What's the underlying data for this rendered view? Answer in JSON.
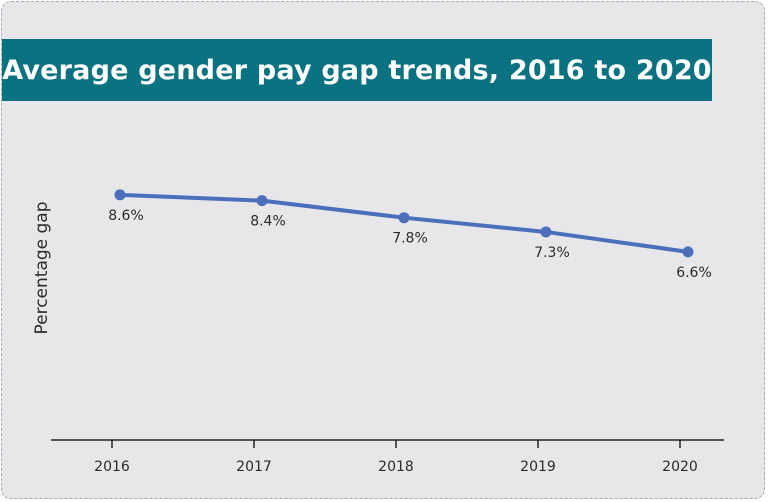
{
  "colors": {
    "background": "#e7e7ea",
    "banner": "#0b7282",
    "line": "#4c6fbb",
    "axis": "#222222"
  },
  "chart_data": {
    "type": "line",
    "title": "Average gender pay gap trends, 2016 to 2020",
    "xlabel": "",
    "ylabel": "Percentage gap",
    "categories": [
      "2016",
      "2017",
      "2018",
      "2019",
      "2020"
    ],
    "series": [
      {
        "values": [
          8.6,
          8.4,
          7.8,
          7.3,
          6.6
        ]
      }
    ],
    "data_labels": [
      "8.6%",
      "8.4%",
      "7.8%",
      "7.3%",
      "6.6%"
    ],
    "ylim": [
      0,
      11.5
    ],
    "grid": false,
    "legend": "none"
  }
}
